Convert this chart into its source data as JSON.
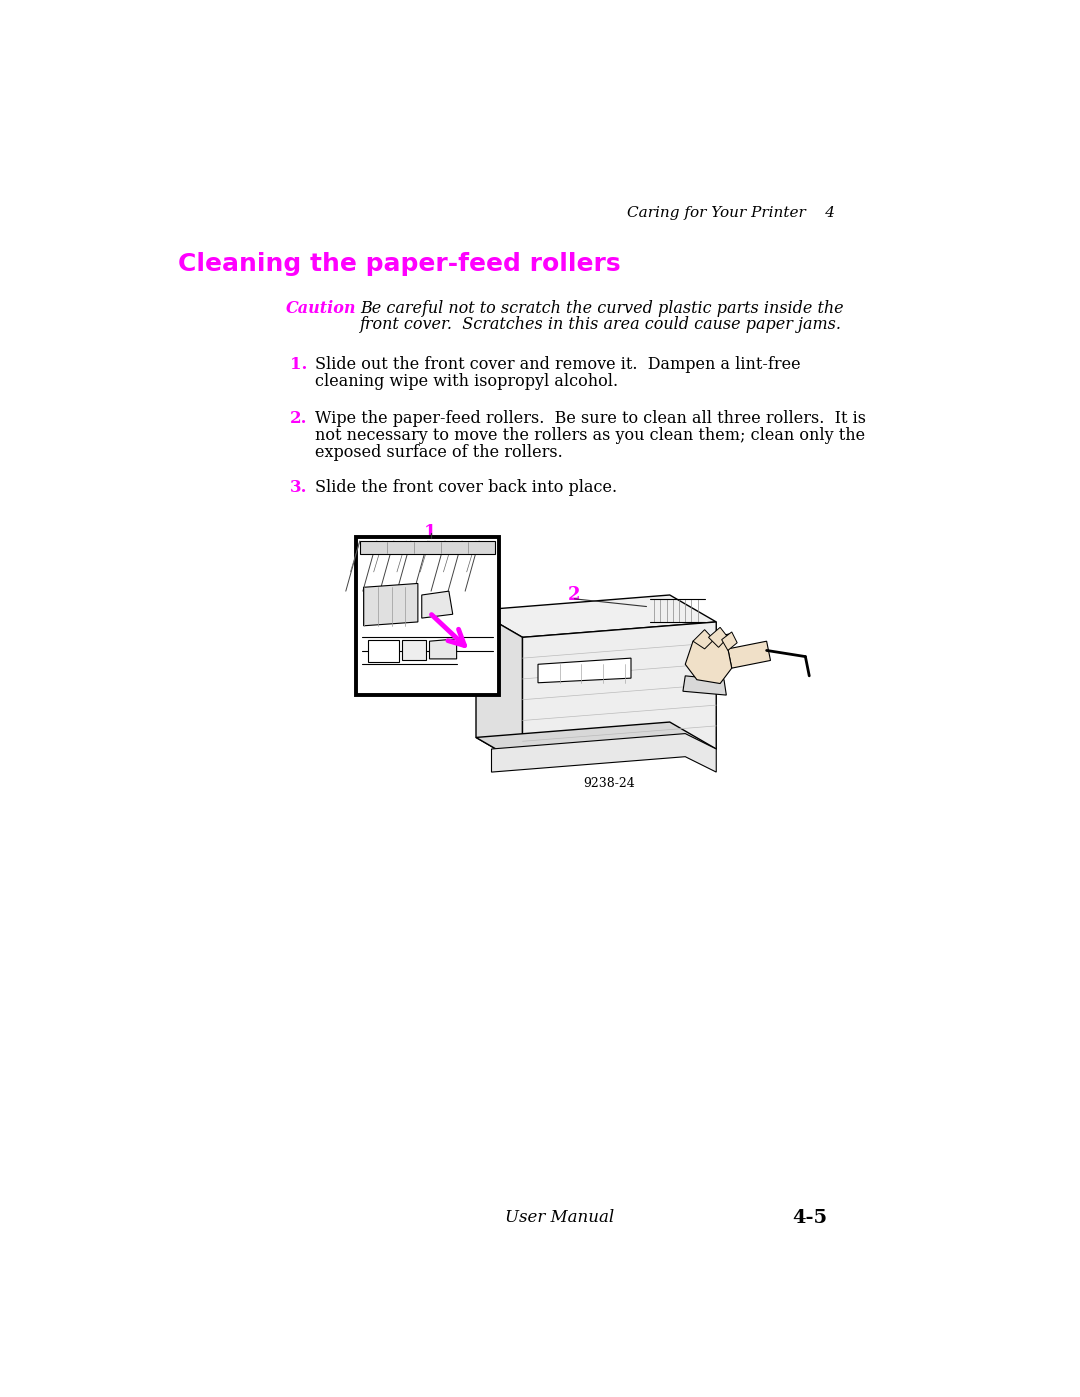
{
  "header_right": "Caring for Your Printer    4",
  "title": "Cleaning the paper-feed rollers",
  "title_color": "#FF00FF",
  "caution_label": "Caution",
  "caution_color": "#FF00FF",
  "caution_text1": "Be careful not to scratch the curved plastic parts inside the",
  "caution_text2": "front cover.  Scratches in this area could cause paper jams.",
  "step1_num": "1.",
  "step1_color": "#FF00FF",
  "step1_text1": "Slide out the front cover and remove it.  Dampen a lint-free",
  "step1_text2": "cleaning wipe with isopropyl alcohol.",
  "step2_num": "2.",
  "step2_color": "#FF00FF",
  "step2_text1": "Wipe the paper-feed rollers.  Be sure to clean all three rollers.  It is",
  "step2_text2": "not necessary to move the rollers as you clean them; clean only the",
  "step2_text3": "exposed surface of the rollers.",
  "step3_num": "3.",
  "step3_color": "#FF00FF",
  "step3_text": "Slide the front cover back into place.",
  "figure_label": "9238-24",
  "footer_left": "User Manual",
  "footer_right": "4-5",
  "bg_color": "#FFFFFF",
  "text_color": "#000000",
  "body_fontsize": 11.5,
  "header_fontsize": 11,
  "title_fontsize": 18,
  "caution_fontsize": 11.5,
  "step_num_fontsize": 12,
  "footer_fontsize": 12
}
